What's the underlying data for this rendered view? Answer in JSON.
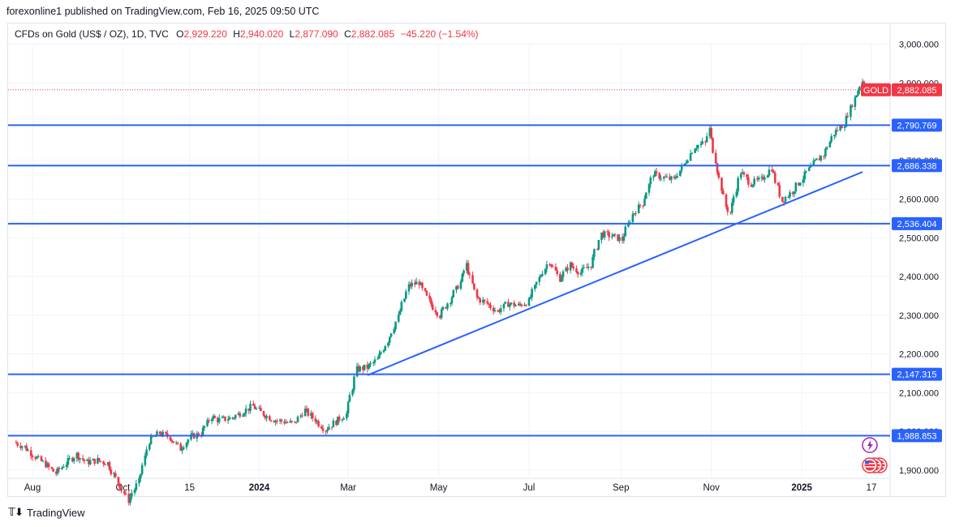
{
  "header": {
    "publisher": "forexonline1 published on TradingView.com, Feb 16, 2025 09:50 UTC"
  },
  "legend": {
    "symbol": "CFDs on Gold (US$ / OZ), 1D, TVC",
    "open_label": "O",
    "open": "2,929.220",
    "high_label": "H",
    "high": "2,940.020",
    "low_label": "L",
    "low": "2,877.090",
    "close_label": "C",
    "close": "2,882.085",
    "change": "−45.220 (−1.54%)"
  },
  "colors": {
    "up": "#089981",
    "down": "#f23645",
    "level": "#2962ff",
    "trend": "#2962ff",
    "price_tag": "#f23645"
  },
  "price_tag": {
    "symbol": "GOLD",
    "value": "2,882.085"
  },
  "footer": {
    "brand": "TradingView"
  },
  "chart_data": {
    "type": "candlestick",
    "title": "",
    "y_axis_ticks": [
      "1,900.000",
      "2,000.000",
      "2,100.000",
      "2,200.000",
      "2,300.000",
      "2,400.000",
      "2,500.000",
      "2,600.000",
      "2,700.000",
      "2,800.000",
      "2,900.000",
      "3,000.000"
    ],
    "y_tick_values": [
      1900,
      2000,
      2100,
      2200,
      2300,
      2400,
      2500,
      2600,
      2700,
      2800,
      2900,
      3000
    ],
    "x_axis_ticks": [
      {
        "label": "Aug",
        "date": "2023-08-01",
        "bold": false
      },
      {
        "label": "Oct",
        "date": "2023-10-01",
        "bold": false
      },
      {
        "label": "15",
        "date": "2023-11-15",
        "bold": false
      },
      {
        "label": "2024",
        "date": "2024-01-01",
        "bold": true
      },
      {
        "label": "Mar",
        "date": "2024-03-01",
        "bold": false
      },
      {
        "label": "May",
        "date": "2024-05-01",
        "bold": false
      },
      {
        "label": "Jul",
        "date": "2024-07-01",
        "bold": false
      },
      {
        "label": "Sep",
        "date": "2024-09-01",
        "bold": false
      },
      {
        "label": "Nov",
        "date": "2024-11-01",
        "bold": false
      },
      {
        "label": "2025",
        "date": "2025-01-01",
        "bold": true
      },
      {
        "label": "17",
        "date": "2025-02-17",
        "bold": false
      }
    ],
    "horizontal_levels": [
      {
        "value": 2790.769,
        "label": "2,790.769"
      },
      {
        "value": 2686.338,
        "label": "2,686.338"
      },
      {
        "value": 2536.404,
        "label": "2,536.404"
      },
      {
        "value": 2147.315,
        "label": "2,147.315"
      },
      {
        "value": 1988.853,
        "label": "1,988.853"
      }
    ],
    "trendline": {
      "start": {
        "date": "2024-03-14",
        "value": 2145
      },
      "end": {
        "date": "2025-02-11",
        "value": 2670
      }
    },
    "last_price": 2882.085,
    "series_close": [
      [
        "2023-07-20",
        1972
      ],
      [
        "2023-07-27",
        1960
      ],
      [
        "2023-08-03",
        1935
      ],
      [
        "2023-08-10",
        1915
      ],
      [
        "2023-08-17",
        1892
      ],
      [
        "2023-08-24",
        1918
      ],
      [
        "2023-08-31",
        1940
      ],
      [
        "2023-09-07",
        1920
      ],
      [
        "2023-09-14",
        1925
      ],
      [
        "2023-09-21",
        1918
      ],
      [
        "2023-09-28",
        1868
      ],
      [
        "2023-10-05",
        1822
      ],
      [
        "2023-10-12",
        1870
      ],
      [
        "2023-10-19",
        1975
      ],
      [
        "2023-10-26",
        1995
      ],
      [
        "2023-11-02",
        1985
      ],
      [
        "2023-11-09",
        1955
      ],
      [
        "2023-11-16",
        1985
      ],
      [
        "2023-11-23",
        1995
      ],
      [
        "2023-11-30",
        2038
      ],
      [
        "2023-12-04",
        2030
      ],
      [
        "2023-12-07",
        2030
      ],
      [
        "2023-12-14",
        2035
      ],
      [
        "2023-12-21",
        2050
      ],
      [
        "2023-12-28",
        2065
      ],
      [
        "2024-01-04",
        2045
      ],
      [
        "2024-01-11",
        2030
      ],
      [
        "2024-01-18",
        2025
      ],
      [
        "2024-01-25",
        2020
      ],
      [
        "2024-02-01",
        2055
      ],
      [
        "2024-02-08",
        2030
      ],
      [
        "2024-02-15",
        2005
      ],
      [
        "2024-02-22",
        2025
      ],
      [
        "2024-02-29",
        2045
      ],
      [
        "2024-03-07",
        2160
      ],
      [
        "2024-03-14",
        2165
      ],
      [
        "2024-03-21",
        2185
      ],
      [
        "2024-03-28",
        2235
      ],
      [
        "2024-04-04",
        2295
      ],
      [
        "2024-04-11",
        2375
      ],
      [
        "2024-04-18",
        2385
      ],
      [
        "2024-04-25",
        2335
      ],
      [
        "2024-05-02",
        2300
      ],
      [
        "2024-05-09",
        2340
      ],
      [
        "2024-05-16",
        2385
      ],
      [
        "2024-05-20",
        2430
      ],
      [
        "2024-05-27",
        2345
      ],
      [
        "2024-06-03",
        2330
      ],
      [
        "2024-06-10",
        2310
      ],
      [
        "2024-06-17",
        2330
      ],
      [
        "2024-06-24",
        2325
      ],
      [
        "2024-07-01",
        2335
      ],
      [
        "2024-07-08",
        2395
      ],
      [
        "2024-07-15",
        2440
      ],
      [
        "2024-07-22",
        2395
      ],
      [
        "2024-07-29",
        2430
      ],
      [
        "2024-08-05",
        2410
      ],
      [
        "2024-08-12",
        2430
      ],
      [
        "2024-08-19",
        2510
      ],
      [
        "2024-08-26",
        2505
      ],
      [
        "2024-09-02",
        2495
      ],
      [
        "2024-09-09",
        2560
      ],
      [
        "2024-09-16",
        2590
      ],
      [
        "2024-09-23",
        2665
      ],
      [
        "2024-09-30",
        2655
      ],
      [
        "2024-10-07",
        2650
      ],
      [
        "2024-10-14",
        2690
      ],
      [
        "2024-10-21",
        2735
      ],
      [
        "2024-10-28",
        2745
      ],
      [
        "2024-10-31",
        2780
      ],
      [
        "2024-11-04",
        2700
      ],
      [
        "2024-11-11",
        2580
      ],
      [
        "2024-11-14",
        2565
      ],
      [
        "2024-11-21",
        2670
      ],
      [
        "2024-11-28",
        2640
      ],
      [
        "2024-12-05",
        2650
      ],
      [
        "2024-12-12",
        2680
      ],
      [
        "2024-12-19",
        2595
      ],
      [
        "2024-12-26",
        2620
      ],
      [
        "2025-01-02",
        2655
      ],
      [
        "2025-01-09",
        2690
      ],
      [
        "2025-01-16",
        2715
      ],
      [
        "2025-01-23",
        2770
      ],
      [
        "2025-01-30",
        2795
      ],
      [
        "2025-02-06",
        2860
      ],
      [
        "2025-02-11",
        2905
      ],
      [
        "2025-02-14",
        2882
      ]
    ]
  }
}
